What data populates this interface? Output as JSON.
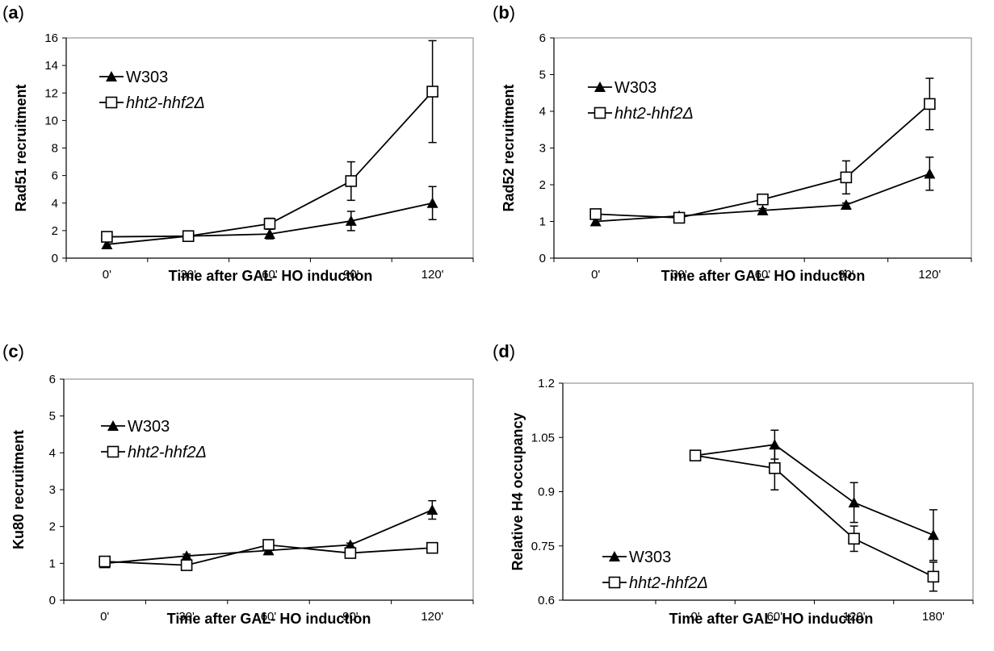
{
  "chart_data": [
    {
      "type": "line",
      "panel_label": "a",
      "xlabel": "Time after GAL- HO induction",
      "ylabel": "Rad51 recruitment",
      "categories": [
        "0'",
        "30'",
        "60'",
        "90'",
        "120'"
      ],
      "ylim": [
        0,
        16
      ],
      "yticks": [
        "0",
        "2",
        "4",
        "6",
        "8",
        "10",
        "12",
        "14",
        "16"
      ],
      "legend_position": "top-left",
      "series": [
        {
          "name": "W303",
          "marker": "triangle",
          "values": [
            1.0,
            1.6,
            1.75,
            2.7,
            4.0
          ],
          "errors": [
            0,
            0,
            0.35,
            0.7,
            1.2
          ]
        },
        {
          "name": "hht2-hhf2Δ",
          "marker": "square",
          "values": [
            1.55,
            1.6,
            2.5,
            5.6,
            12.1
          ],
          "errors": [
            0,
            0,
            0.4,
            1.4,
            3.7
          ]
        }
      ]
    },
    {
      "type": "line",
      "panel_label": "b",
      "xlabel": "Time after GAL- HO induction",
      "ylabel": "Rad52 recruitment",
      "categories": [
        "0'",
        "30'",
        "60'",
        "90'",
        "120'"
      ],
      "ylim": [
        0,
        6
      ],
      "yticks": [
        "0",
        "1",
        "2",
        "3",
        "4",
        "5",
        "6"
      ],
      "legend_position": "top-left",
      "series": [
        {
          "name": "W303",
          "marker": "triangle",
          "values": [
            1.0,
            1.15,
            1.3,
            1.45,
            2.3
          ],
          "errors": [
            0,
            0.05,
            0.05,
            0.05,
            0.45
          ]
        },
        {
          "name": "hht2-hhf2Δ",
          "marker": "square",
          "values": [
            1.2,
            1.1,
            1.6,
            2.2,
            4.2
          ],
          "errors": [
            0,
            0,
            0.05,
            0.45,
            0.7
          ]
        }
      ]
    },
    {
      "type": "line",
      "panel_label": "c",
      "xlabel": "Time after GAL- HO induction",
      "ylabel": "Ku80 recruitment",
      "categories": [
        "0'",
        "30'",
        "60'",
        "90'",
        "120'"
      ],
      "ylim": [
        0,
        6
      ],
      "yticks": [
        "0",
        "1",
        "2",
        "3",
        "4",
        "5",
        "6"
      ],
      "legend_position": "top-left",
      "series": [
        {
          "name": "W303",
          "marker": "triangle",
          "values": [
            1.0,
            1.2,
            1.35,
            1.5,
            2.45
          ],
          "errors": [
            0,
            0.05,
            0.05,
            0.05,
            0.25
          ]
        },
        {
          "name": "hht2-hhf2Δ",
          "marker": "square",
          "values": [
            1.05,
            0.95,
            1.5,
            1.28,
            1.42
          ],
          "errors": [
            0.08,
            0,
            0.05,
            0,
            0
          ]
        }
      ]
    },
    {
      "type": "line",
      "panel_label": "d",
      "xlabel": "Time after GAL- HO induction",
      "ylabel": "Relative H4  occupancy",
      "categories": [
        "0'",
        "60'",
        "120'",
        "180'"
      ],
      "ylim": [
        0.6,
        1.2
      ],
      "yticks": [
        "0.6",
        "0.75",
        "0.9",
        "1.05",
        "1.2"
      ],
      "legend_position": "bottom-left",
      "series": [
        {
          "name": "W303",
          "marker": "triangle",
          "values": [
            1.0,
            1.03,
            0.87,
            0.78
          ],
          "errors": [
            0,
            0.04,
            0.055,
            0.07
          ]
        },
        {
          "name": "hht2-hhf2Δ",
          "marker": "square",
          "values": [
            1.0,
            0.965,
            0.77,
            0.665
          ],
          "errors": [
            0,
            0.06,
            0.035,
            0.04
          ]
        }
      ]
    }
  ]
}
